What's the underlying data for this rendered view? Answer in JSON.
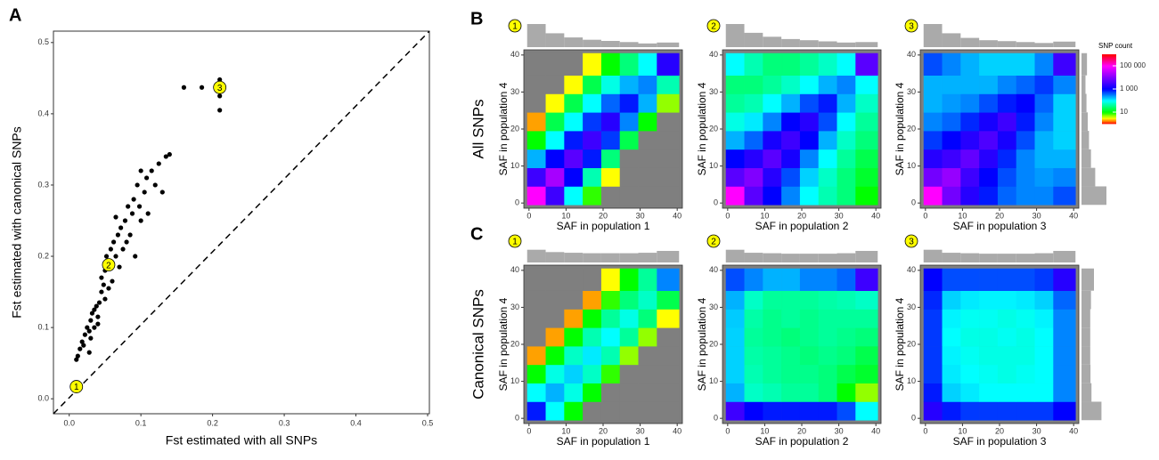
{
  "chart_data": [
    {
      "type": "scatter",
      "panel": "A",
      "xlabel": "Fst estimated with all SNPs",
      "ylabel": "Fst estimated with canonical SNPs",
      "color": "#000000",
      "xlim": [
        -0.022,
        0.5025
      ],
      "ylim": [
        -0.021,
        0.516
      ],
      "xticks": [
        {
          "value": 0,
          "label": "0.0"
        },
        0.1,
        0.2,
        0.3,
        0.4,
        0.5
      ],
      "yticks": [
        {
          "value": 0,
          "label": "0.0"
        },
        0.1,
        0.2,
        0.3,
        0.4,
        0.5
      ],
      "x": [
        0.01,
        0.012,
        0.015,
        0.018,
        0.02,
        0.022,
        0.025,
        0.028,
        0.03,
        0.032,
        0.035,
        0.035,
        0.038,
        0.04,
        0.042,
        0.045,
        0.045,
        0.048,
        0.05,
        0.05,
        0.052,
        0.055,
        0.058,
        0.06,
        0.062,
        0.065,
        0.068,
        0.07,
        0.072,
        0.075,
        0.078,
        0.08,
        0.082,
        0.085,
        0.088,
        0.09,
        0.092,
        0.095,
        0.098,
        0.1,
        0.1,
        0.105,
        0.108,
        0.11,
        0.115,
        0.12,
        0.125,
        0.13,
        0.135,
        0.14,
        0.16,
        0.185,
        0.21,
        0.21,
        0.21,
        0.028,
        0.04,
        0.055,
        0.03,
        0.065
      ],
      "y": [
        0.055,
        0.06,
        0.07,
        0.08,
        0.075,
        0.09,
        0.1,
        0.095,
        0.11,
        0.12,
        0.1,
        0.125,
        0.13,
        0.115,
        0.135,
        0.15,
        0.17,
        0.16,
        0.14,
        0.18,
        0.2,
        0.19,
        0.21,
        0.165,
        0.22,
        0.2,
        0.23,
        0.185,
        0.24,
        0.21,
        0.25,
        0.22,
        0.27,
        0.23,
        0.26,
        0.28,
        0.2,
        0.3,
        0.27,
        0.32,
        0.25,
        0.29,
        0.31,
        0.26,
        0.32,
        0.3,
        0.33,
        0.29,
        0.34,
        0.343,
        0.437,
        0.437,
        0.405,
        0.425,
        0.448,
        0.065,
        0.105,
        0.155,
        0.085,
        0.255
      ],
      "annotations": [
        {
          "text": "1",
          "x": 0.01,
          "y": 0.017
        },
        {
          "text": "2",
          "x": 0.055,
          "y": 0.188
        },
        {
          "text": "3",
          "x": 0.21,
          "y": 0.437
        }
      ]
    },
    {
      "type": "heatmap",
      "panel": "B",
      "row_label": "All SNPs",
      "annotation": "1",
      "xlabel": "SAF in population 1",
      "ylabel": "SAF in population 4",
      "xlim": [
        -1.4,
        41.4
      ],
      "ylim": [
        -1.4,
        41.4
      ],
      "xticks": [
        0,
        10,
        20,
        30,
        40
      ],
      "yticks": [
        0,
        10,
        20,
        30,
        40
      ],
      "bins": [
        -0.5,
        4.5,
        9.5,
        14.5,
        19.5,
        24.5,
        29.5,
        34.5,
        40.5
      ],
      "top_hist": [
        1.0,
        0.6,
        0.42,
        0.32,
        0.27,
        0.22,
        0.16,
        0.2
      ],
      "z": [
        [
          100000,
          3000,
          100,
          8,
          null,
          null,
          null,
          null
        ],
        [
          3000,
          20000,
          1000,
          50,
          3,
          null,
          null,
          null
        ],
        [
          200,
          1000,
          5000,
          800,
          30,
          null,
          null,
          null
        ],
        [
          10,
          100,
          800,
          3000,
          600,
          20,
          null,
          null
        ],
        [
          2,
          20,
          100,
          600,
          2000,
          300,
          10,
          null
        ],
        [
          null,
          3,
          20,
          100,
          400,
          800,
          200,
          5
        ],
        [
          null,
          null,
          3,
          20,
          80,
          200,
          300,
          50
        ],
        [
          null,
          null,
          null,
          3,
          10,
          30,
          100,
          2000
        ]
      ]
    },
    {
      "type": "heatmap",
      "annotation": "2",
      "xlabel": "SAF in population 2",
      "ylabel": "SAF in population 4",
      "xlim": [
        -1.4,
        41.4
      ],
      "ylim": [
        -1.4,
        41.4
      ],
      "xticks": [
        0,
        10,
        20,
        30,
        40
      ],
      "yticks": [
        0,
        10,
        20,
        30,
        40
      ],
      "bins": [
        -0.5,
        4.5,
        9.5,
        14.5,
        19.5,
        24.5,
        29.5,
        34.5,
        40.5
      ],
      "top_hist": [
        1.0,
        0.62,
        0.45,
        0.35,
        0.3,
        0.25,
        0.2,
        0.22
      ],
      "z": [
        [
          100000,
          5000,
          1000,
          300,
          100,
          50,
          30,
          10
        ],
        [
          5000,
          10000,
          2000,
          500,
          150,
          60,
          30,
          15
        ],
        [
          1000,
          2000,
          5000,
          1500,
          300,
          100,
          40,
          20
        ],
        [
          200,
          400,
          1500,
          3000,
          1000,
          200,
          60,
          30
        ],
        [
          80,
          120,
          300,
          1000,
          2000,
          500,
          100,
          40
        ],
        [
          40,
          50,
          100,
          200,
          500,
          800,
          200,
          60
        ],
        [
          30,
          30,
          40,
          60,
          100,
          200,
          300,
          100
        ],
        [
          100,
          50,
          30,
          30,
          40,
          60,
          100,
          5000
        ]
      ]
    },
    {
      "type": "heatmap",
      "annotation": "3",
      "xlabel": "SAF in population 3",
      "ylabel": "SAF in population 4",
      "xlim": [
        -1.4,
        41.4
      ],
      "ylim": [
        -1.4,
        41.4
      ],
      "xticks": [
        0,
        10,
        20,
        30,
        40
      ],
      "yticks": [
        0,
        10,
        20,
        30,
        40
      ],
      "bins": [
        -0.5,
        4.5,
        9.5,
        14.5,
        19.5,
        24.5,
        29.5,
        34.5,
        40.5
      ],
      "top_hist": [
        1.0,
        0.6,
        0.4,
        0.3,
        0.26,
        0.22,
        0.18,
        0.24
      ],
      "right_hist": [
        1.0,
        0.55,
        0.38,
        0.3,
        0.25,
        0.2,
        0.16,
        0.22
      ],
      "z": [
        [
          100000,
          8000,
          2000,
          800,
          400,
          300,
          300,
          500
        ],
        [
          8000,
          15000,
          3000,
          1000,
          500,
          300,
          250,
          300
        ],
        [
          2000,
          3000,
          6000,
          2000,
          700,
          300,
          200,
          200
        ],
        [
          600,
          1000,
          2000,
          4000,
          1500,
          500,
          200,
          150
        ],
        [
          300,
          400,
          700,
          1500,
          3000,
          800,
          300,
          150
        ],
        [
          200,
          250,
          300,
          500,
          800,
          1000,
          400,
          150
        ],
        [
          200,
          200,
          200,
          200,
          300,
          400,
          600,
          300
        ],
        [
          500,
          300,
          200,
          150,
          150,
          150,
          300,
          3000
        ]
      ],
      "colorbar": {
        "title": "SNP count",
        "lim": [
          1,
          1000000
        ],
        "ticks": [
          {
            "value": 100000,
            "label": "100 000"
          },
          {
            "value": 1000,
            "label": "1 000"
          },
          10
        ]
      },
      "colorscale": [
        [
          1,
          "#ff0000"
        ],
        [
          3,
          "#ffff00"
        ],
        [
          10,
          "#00ff00"
        ],
        [
          100,
          "#00ffff"
        ],
        [
          1000,
          "#0000ff"
        ],
        [
          100000,
          "#ff00ff"
        ],
        [
          1000000,
          "#ff0000"
        ]
      ],
      "na_color": "#7f7f7f"
    },
    {
      "type": "heatmap",
      "panel": "C",
      "row_label": "Canonical SNPs",
      "annotation": "1",
      "xlabel": "SAF in population 1",
      "ylabel": "SAF in population 4",
      "xlim": [
        -1.4,
        41.4
      ],
      "ylim": [
        -1.4,
        41.4
      ],
      "xticks": [
        0,
        10,
        20,
        30,
        40
      ],
      "yticks": [
        0,
        10,
        20,
        30,
        40
      ],
      "bins": [
        -0.5,
        4.5,
        9.5,
        14.5,
        19.5,
        24.5,
        29.5,
        34.5,
        40.5
      ],
      "top_hist": [
        0.55,
        0.45,
        0.42,
        0.4,
        0.4,
        0.4,
        0.42,
        0.5
      ],
      "z": [
        [
          800,
          100,
          10,
          null,
          null,
          null,
          null,
          null
        ],
        [
          100,
          200,
          80,
          10,
          null,
          null,
          null,
          null
        ],
        [
          10,
          80,
          150,
          60,
          8,
          null,
          null,
          null
        ],
        [
          2,
          10,
          60,
          120,
          50,
          5,
          null,
          null
        ],
        [
          null,
          2,
          10,
          50,
          100,
          40,
          5,
          null
        ],
        [
          null,
          null,
          2,
          10,
          40,
          80,
          30,
          3
        ],
        [
          null,
          null,
          null,
          2,
          8,
          30,
          60,
          20
        ],
        [
          null,
          null,
          null,
          null,
          3,
          10,
          40,
          300
        ]
      ]
    },
    {
      "type": "heatmap",
      "annotation": "2",
      "xlabel": "SAF in population 2",
      "ylabel": "SAF in population 4",
      "xlim": [
        -1.4,
        41.4
      ],
      "ylim": [
        -1.4,
        41.4
      ],
      "xticks": [
        0,
        10,
        20,
        30,
        40
      ],
      "yticks": [
        0,
        10,
        20,
        30,
        40
      ],
      "bins": [
        -0.5,
        4.5,
        9.5,
        14.5,
        19.5,
        24.5,
        29.5,
        34.5,
        40.5
      ],
      "top_hist": [
        0.55,
        0.42,
        0.4,
        0.38,
        0.38,
        0.38,
        0.4,
        0.5
      ],
      "z": [
        [
          3000,
          1000,
          800,
          800,
          800,
          800,
          500,
          100
        ],
        [
          200,
          60,
          50,
          40,
          40,
          30,
          10,
          5
        ],
        [
          150,
          50,
          40,
          35,
          35,
          30,
          20,
          15
        ],
        [
          150,
          45,
          40,
          35,
          30,
          35,
          30,
          20
        ],
        [
          150,
          40,
          35,
          30,
          35,
          40,
          35,
          30
        ],
        [
          160,
          45,
          35,
          40,
          35,
          40,
          40,
          40
        ],
        [
          200,
          60,
          40,
          40,
          40,
          45,
          50,
          60
        ],
        [
          500,
          300,
          200,
          200,
          300,
          300,
          400,
          3000
        ]
      ]
    },
    {
      "type": "heatmap",
      "annotation": "3",
      "xlabel": "SAF in population 3",
      "ylabel": "SAF in population 4",
      "xlim": [
        -1.4,
        41.4
      ],
      "ylim": [
        -1.4,
        41.4
      ],
      "xticks": [
        0,
        10,
        20,
        30,
        40
      ],
      "yticks": [
        0,
        10,
        20,
        30,
        40
      ],
      "bins": [
        -0.5,
        4.5,
        9.5,
        14.5,
        19.5,
        24.5,
        29.5,
        34.5,
        40.5
      ],
      "top_hist": [
        0.55,
        0.42,
        0.4,
        0.38,
        0.38,
        0.38,
        0.4,
        0.5
      ],
      "right_hist": [
        0.8,
        0.4,
        0.36,
        0.35,
        0.35,
        0.35,
        0.38,
        0.5
      ],
      "z": [
        [
          2000,
          800,
          600,
          600,
          600,
          600,
          600,
          1000
        ],
        [
          800,
          150,
          120,
          100,
          100,
          100,
          100,
          300
        ],
        [
          600,
          120,
          100,
          90,
          80,
          90,
          100,
          300
        ],
        [
          600,
          110,
          90,
          80,
          80,
          80,
          100,
          300
        ],
        [
          600,
          100,
          80,
          80,
          90,
          80,
          100,
          300
        ],
        [
          600,
          110,
          90,
          90,
          80,
          90,
          110,
          300
        ],
        [
          700,
          150,
          120,
          110,
          110,
          120,
          150,
          400
        ],
        [
          1000,
          500,
          500,
          500,
          500,
          500,
          600,
          2000
        ]
      ]
    }
  ]
}
